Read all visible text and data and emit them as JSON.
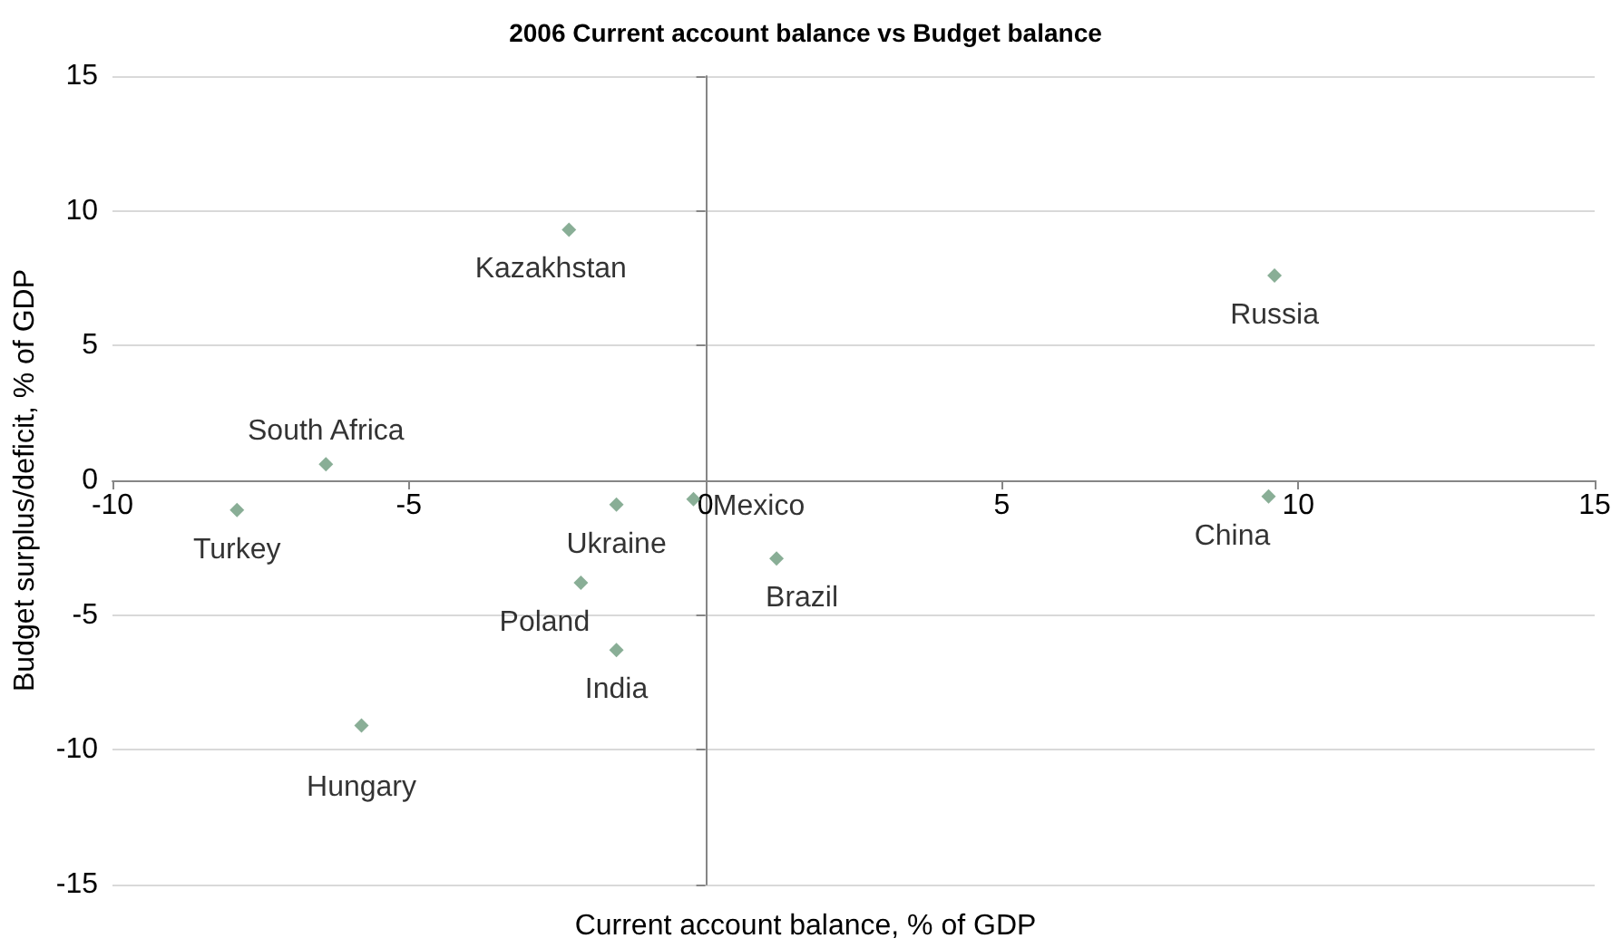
{
  "chart_data": {
    "type": "scatter",
    "title": "2006 Current account balance vs Budget balance",
    "xlabel": "Current account balance, % of GDP",
    "ylabel": "Budget surplus/deficit, % of GDP",
    "x": [
      -2.3,
      9.6,
      -6.4,
      -7.9,
      -1.5,
      -0.2,
      9.5,
      1.2,
      -2.1,
      -1.5,
      -5.8
    ],
    "values": [
      9.3,
      7.6,
      0.6,
      -1.1,
      -0.9,
      -0.7,
      -0.6,
      -2.9,
      -3.8,
      -6.3,
      -9.1
    ],
    "color": "#6b9a7c",
    "marker": "diamond",
    "xlim": [
      -10,
      15
    ],
    "xticks": [
      -10,
      -5,
      0,
      5,
      10,
      15
    ],
    "ylim": [
      -15,
      15
    ],
    "yticks": [
      -15,
      -10,
      -5,
      0,
      5,
      10,
      15
    ],
    "grid": "y",
    "annotations": [
      {
        "text": "Kazakhstan",
        "x": -2.3,
        "y": 9.3
      },
      {
        "text": "Russia",
        "x": 9.6,
        "y": 7.6
      },
      {
        "text": "South Africa",
        "x": -6.4,
        "y": 0.6
      },
      {
        "text": "Turkey",
        "x": -7.9,
        "y": -1.1
      },
      {
        "text": "Ukraine",
        "x": -1.5,
        "y": -0.9
      },
      {
        "text": "Mexico",
        "x": -0.2,
        "y": -0.7
      },
      {
        "text": "China",
        "x": 9.5,
        "y": -0.6
      },
      {
        "text": "Brazil",
        "x": 1.2,
        "y": -2.9
      },
      {
        "text": "Poland",
        "x": -2.1,
        "y": -3.8
      },
      {
        "text": "India",
        "x": -1.5,
        "y": -6.3
      },
      {
        "text": "Hungary",
        "x": -5.8,
        "y": -9.1
      }
    ]
  }
}
